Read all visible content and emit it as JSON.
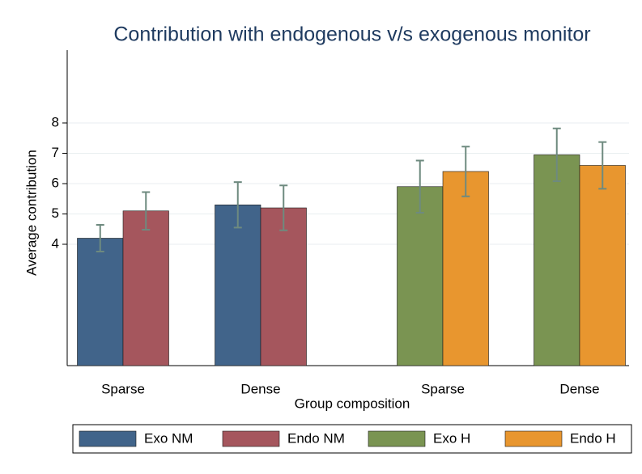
{
  "chart_data": {
    "type": "bar",
    "title": "Contribution with endogenous v/s exogenous monitor",
    "x_label": "Group composition",
    "y_label": "Average contribution",
    "categories": [
      "Sparse",
      "Dense",
      "Sparse",
      "Dense"
    ],
    "series": [
      {
        "name": "Exo NM",
        "color": "#41648a",
        "values": [
          4.2,
          5.3,
          null,
          null
        ],
        "errors": [
          0.44,
          0.75,
          null,
          null
        ]
      },
      {
        "name": "Endo NM",
        "color": "#a5565d",
        "values": [
          5.1,
          5.2,
          null,
          null
        ],
        "errors": [
          0.62,
          0.74,
          null,
          null
        ]
      },
      {
        "name": "Exo H",
        "color": "#7a9452",
        "values": [
          null,
          null,
          5.9,
          6.95
        ],
        "errors": [
          null,
          null,
          0.86,
          0.87
        ]
      },
      {
        "name": "Endo H",
        "color": "#e8962f",
        "values": [
          null,
          null,
          6.4,
          6.6
        ],
        "errors": [
          null,
          null,
          0.82,
          0.77
        ]
      }
    ],
    "error_color": "#6e8a7f",
    "ylim": [
      0,
      10.4
    ],
    "yticks": [
      4,
      5,
      6,
      7,
      8
    ],
    "grid": true,
    "legend": "bottom"
  }
}
